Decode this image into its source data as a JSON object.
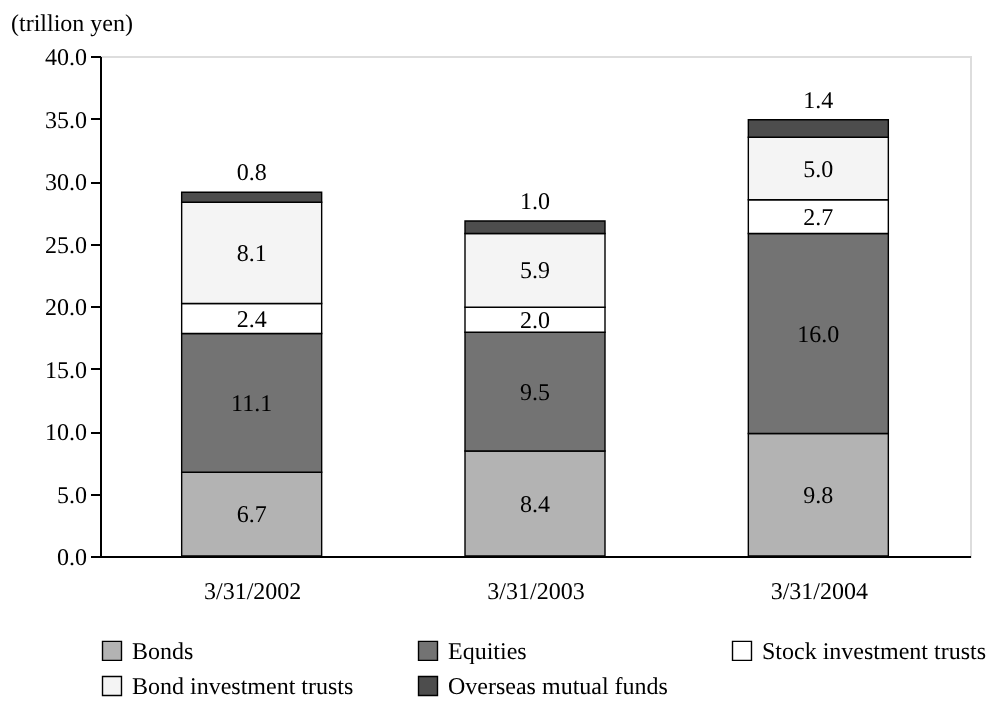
{
  "chart_data": {
    "type": "bar",
    "stacked": true,
    "ylabel": "(trillion yen)",
    "categories": [
      "3/31/2002",
      "3/31/2003",
      "3/31/2004"
    ],
    "series": [
      {
        "name": "Bonds",
        "color": "#b3b3b3",
        "values": [
          6.7,
          8.4,
          9.8
        ],
        "value_labels": [
          "6.7",
          "8.4",
          "9.8"
        ]
      },
      {
        "name": "Equities",
        "color": "#737373",
        "values": [
          11.1,
          9.5,
          16.0
        ],
        "value_labels": [
          "11.1",
          "9.5",
          "16.0"
        ]
      },
      {
        "name": "Stock investment trusts",
        "color": "#ffffff",
        "values": [
          2.4,
          2.0,
          2.7
        ],
        "value_labels": [
          "2.4",
          "2.0",
          "2.7"
        ]
      },
      {
        "name": "Bond investment trusts",
        "color": "#f4f4f4",
        "values": [
          8.1,
          5.9,
          5.0
        ],
        "value_labels": [
          "8.1",
          "5.9",
          "5.0"
        ]
      },
      {
        "name": "Overseas mutual funds",
        "color": "#4d4d4d",
        "values": [
          0.8,
          1.0,
          1.4
        ],
        "value_labels": [
          "0.8",
          "1.0",
          "1.4"
        ]
      }
    ],
    "ylim": [
      0,
      40
    ],
    "yticks": [
      {
        "value": 0,
        "label": "0.0"
      },
      {
        "value": 5,
        "label": "5.0"
      },
      {
        "value": 10,
        "label": "10.0"
      },
      {
        "value": 15,
        "label": "15.0"
      },
      {
        "value": 20,
        "label": "20.0"
      },
      {
        "value": 25,
        "label": "25.0"
      },
      {
        "value": 30,
        "label": "30.0"
      },
      {
        "value": 35,
        "label": "35.0"
      },
      {
        "value": 40,
        "label": "40.0"
      }
    ],
    "grid": false,
    "legend": "bottom"
  }
}
